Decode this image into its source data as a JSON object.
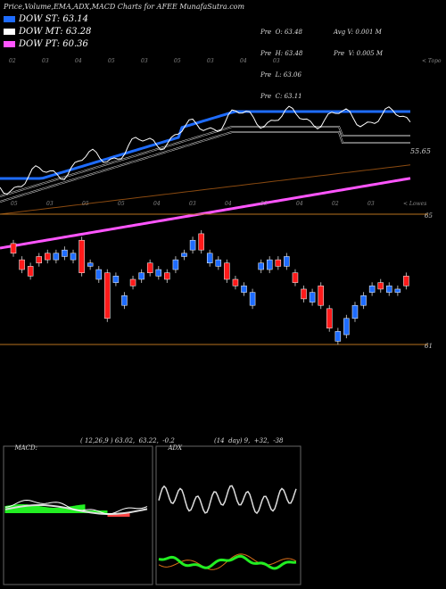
{
  "header": {
    "title": "Price,Volume,EMA,ADX,MACD Charts for AFEE MunafaSutra.com"
  },
  "legend": [
    {
      "label": "DOW ST: 63.14",
      "color": "#1e6cff"
    },
    {
      "label": "DOW MT: 63.28",
      "color": "#ffffff"
    },
    {
      "label": "DOW PT: 60.36",
      "color": "#ff55ff"
    }
  ],
  "info": {
    "col1": [
      "Pre  O: 63.48",
      "Pre  H: 63.48",
      "Pre  L: 63.06",
      "Pre  C: 63.11"
    ],
    "col2": [
      "Avg V: 0.001 M",
      "Pre  V: 0.005 M"
    ]
  },
  "chart_data": [
    {
      "type": "candlestick",
      "panel": "price",
      "horizontal_levels": [
        {
          "label": "65",
          "value": 65
        },
        {
          "label": "61",
          "value": 61
        }
      ],
      "price_label": "55.65",
      "top_labels": [
        "02",
        "03",
        "04",
        "05",
        "03",
        "05",
        "03",
        "04",
        "03",
        "< Topo"
      ],
      "bottom_labels": [
        "05",
        "03",
        "05",
        "05",
        "04",
        "03",
        "04",
        "05",
        "04",
        "02",
        "03",
        "< Lowes"
      ],
      "candles": [
        {
          "o": 63.8,
          "c": 64.1,
          "up": false
        },
        {
          "o": 63.6,
          "c": 63.3,
          "up": false
        },
        {
          "o": 63.4,
          "c": 63.1,
          "up": false
        },
        {
          "o": 63.5,
          "c": 63.7,
          "up": false
        },
        {
          "o": 63.6,
          "c": 63.8,
          "up": false
        },
        {
          "o": 63.8,
          "c": 63.6,
          "up": true
        },
        {
          "o": 63.9,
          "c": 63.7,
          "up": true
        },
        {
          "o": 63.6,
          "c": 63.8,
          "up": true
        },
        {
          "o": 64.2,
          "c": 63.2,
          "up": false
        },
        {
          "o": 63.4,
          "c": 63.5,
          "up": true
        },
        {
          "o": 63.3,
          "c": 63.0,
          "up": true
        },
        {
          "o": 63.2,
          "c": 61.8,
          "up": false
        },
        {
          "o": 63.1,
          "c": 62.9,
          "up": true
        },
        {
          "o": 62.5,
          "c": 62.2,
          "up": true
        },
        {
          "o": 63.0,
          "c": 62.8,
          "up": false
        },
        {
          "o": 63.2,
          "c": 63.0,
          "up": true
        },
        {
          "o": 63.2,
          "c": 63.5,
          "up": false
        },
        {
          "o": 63.3,
          "c": 63.1,
          "up": true
        },
        {
          "o": 63.0,
          "c": 63.2,
          "up": false
        },
        {
          "o": 63.6,
          "c": 63.3,
          "up": true
        },
        {
          "o": 63.8,
          "c": 63.7,
          "up": true
        },
        {
          "o": 64.2,
          "c": 63.9,
          "up": true
        },
        {
          "o": 64.4,
          "c": 63.9,
          "up": false
        },
        {
          "o": 63.8,
          "c": 63.5,
          "up": true
        },
        {
          "o": 63.6,
          "c": 63.4,
          "up": true
        },
        {
          "o": 63.5,
          "c": 63.0,
          "up": false
        },
        {
          "o": 63.0,
          "c": 62.8,
          "up": false
        },
        {
          "o": 62.8,
          "c": 62.6,
          "up": true
        },
        {
          "o": 62.6,
          "c": 62.2,
          "up": true
        },
        {
          "o": 63.5,
          "c": 63.3,
          "up": true
        },
        {
          "o": 63.6,
          "c": 63.3,
          "up": true
        },
        {
          "o": 63.4,
          "c": 63.6,
          "up": false
        },
        {
          "o": 63.7,
          "c": 63.4,
          "up": true
        },
        {
          "o": 63.2,
          "c": 62.9,
          "up": false
        },
        {
          "o": 62.7,
          "c": 62.4,
          "up": false
        },
        {
          "o": 62.6,
          "c": 62.3,
          "up": true
        },
        {
          "o": 62.8,
          "c": 62.2,
          "up": false
        },
        {
          "o": 62.1,
          "c": 61.5,
          "up": false
        },
        {
          "o": 61.4,
          "c": 61.1,
          "up": true
        },
        {
          "o": 61.8,
          "c": 61.3,
          "up": true
        },
        {
          "o": 62.2,
          "c": 61.8,
          "up": true
        },
        {
          "o": 62.5,
          "c": 62.2,
          "up": true
        },
        {
          "o": 62.8,
          "c": 62.6,
          "up": true
        },
        {
          "o": 62.7,
          "c": 62.9,
          "up": false
        },
        {
          "o": 62.6,
          "c": 62.8,
          "up": true
        },
        {
          "o": 62.6,
          "c": 62.7,
          "up": true
        },
        {
          "o": 62.8,
          "c": 63.1,
          "up": false
        }
      ]
    },
    {
      "type": "line",
      "panel": "macd",
      "label": "MACD:",
      "params": "( 12,26,9 ) 63.02,  63.22,  -0.2"
    },
    {
      "type": "line",
      "panel": "adx",
      "label": "ADX",
      "params": "(14  day) 9,  +32,  -38"
    }
  ]
}
